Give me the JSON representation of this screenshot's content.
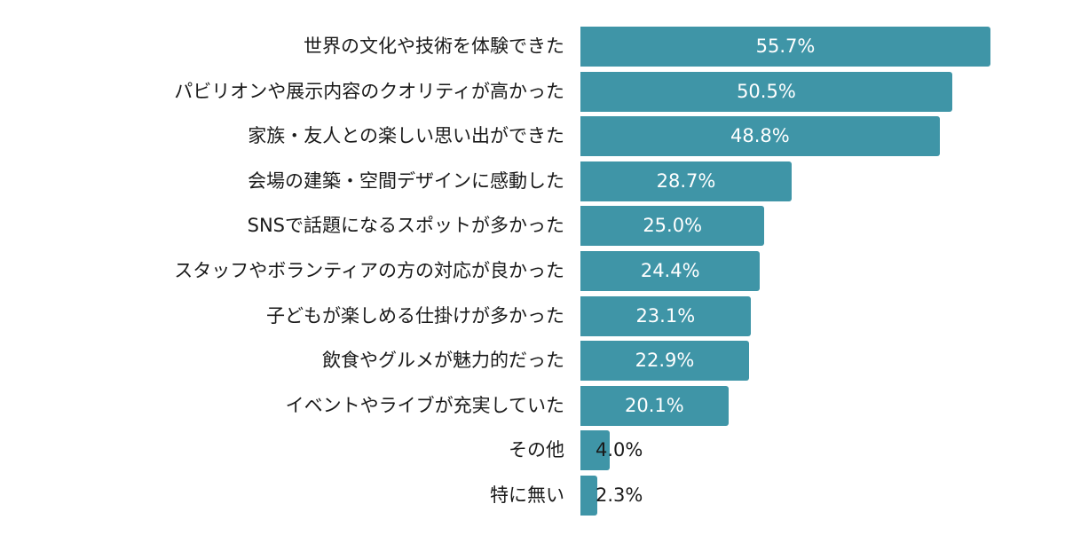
{
  "chart_data": {
    "type": "bar",
    "orientation": "horizontal",
    "title": "",
    "xlabel": "",
    "ylabel": "",
    "grid": false,
    "legend": null,
    "bar_color": "#3f95a7",
    "unit": "%",
    "xlim": [
      0,
      60
    ],
    "categories": [
      "世界の文化や技術を体験できた",
      "パビリオンや展示内容のクオリティが高かった",
      "家族・友人との楽しい思い出ができた",
      "会場の建築・空間デザインに感動した",
      "SNSで話題になるスポットが多かった",
      "スタッフやボランティアの方の対応が良かった",
      "子どもが楽しめる仕掛けが多かった",
      "飲食やグルメが魅力的だった",
      "イベントやライブが充実していた",
      "その他",
      "特に無い"
    ],
    "values": [
      55.7,
      50.5,
      48.8,
      28.7,
      25.0,
      24.4,
      23.1,
      22.9,
      20.1,
      4.0,
      2.3
    ],
    "value_labels": [
      "55.7%",
      "50.5%",
      "48.8%",
      "28.7%",
      "25.0%",
      "24.4%",
      "23.1%",
      "22.9%",
      "20.1%",
      "4.0%",
      "2.3%"
    ]
  }
}
